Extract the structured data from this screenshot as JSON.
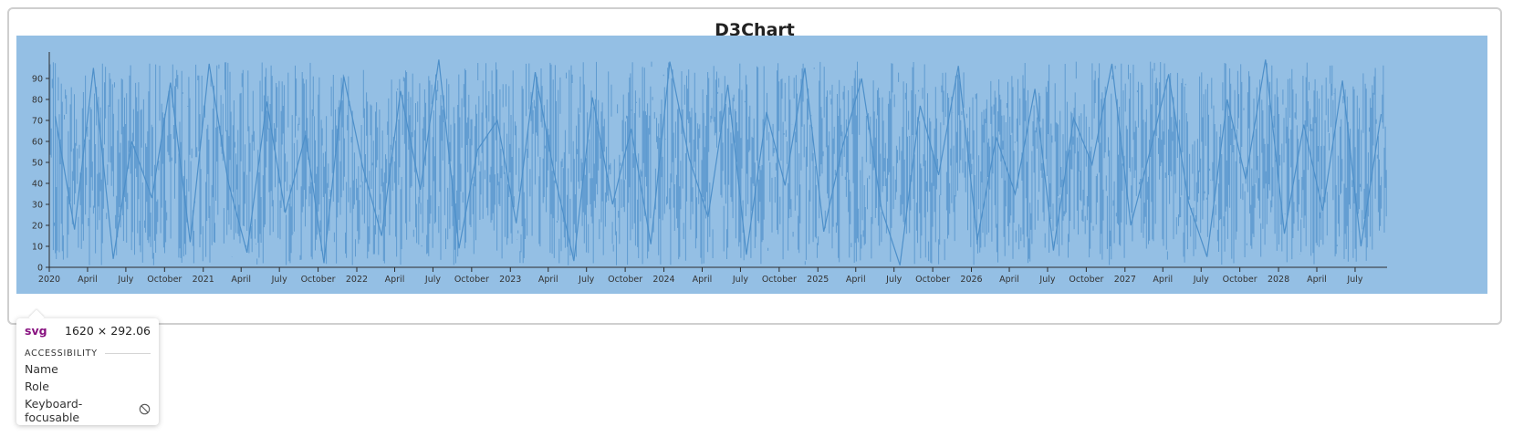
{
  "chart_data": {
    "type": "line",
    "title": "D3Chart",
    "xlabel": "",
    "ylabel": "",
    "ylim": [
      0,
      100
    ],
    "y_ticks": [
      0,
      10,
      20,
      30,
      40,
      50,
      60,
      70,
      80,
      90
    ],
    "x_range": [
      "2020-01-01",
      "2028-09-15"
    ],
    "x_ticks": [
      {
        "date": "2020-01-01",
        "label": "2020"
      },
      {
        "date": "2020-04-01",
        "label": "April"
      },
      {
        "date": "2020-07-01",
        "label": "July"
      },
      {
        "date": "2020-10-01",
        "label": "October"
      },
      {
        "date": "2021-01-01",
        "label": "2021"
      },
      {
        "date": "2021-04-01",
        "label": "April"
      },
      {
        "date": "2021-07-01",
        "label": "July"
      },
      {
        "date": "2021-10-01",
        "label": "October"
      },
      {
        "date": "2022-01-01",
        "label": "2022"
      },
      {
        "date": "2022-04-01",
        "label": "April"
      },
      {
        "date": "2022-07-01",
        "label": "July"
      },
      {
        "date": "2022-10-01",
        "label": "October"
      },
      {
        "date": "2023-01-01",
        "label": "2023"
      },
      {
        "date": "2023-04-01",
        "label": "April"
      },
      {
        "date": "2023-07-01",
        "label": "July"
      },
      {
        "date": "2023-10-01",
        "label": "October"
      },
      {
        "date": "2024-01-01",
        "label": "2024"
      },
      {
        "date": "2024-04-01",
        "label": "April"
      },
      {
        "date": "2024-07-01",
        "label": "July"
      },
      {
        "date": "2024-10-01",
        "label": "October"
      },
      {
        "date": "2025-01-01",
        "label": "2025"
      },
      {
        "date": "2025-04-01",
        "label": "April"
      },
      {
        "date": "2025-07-01",
        "label": "July"
      },
      {
        "date": "2025-10-01",
        "label": "October"
      },
      {
        "date": "2026-01-01",
        "label": "2026"
      },
      {
        "date": "2026-04-01",
        "label": "April"
      },
      {
        "date": "2026-07-01",
        "label": "July"
      },
      {
        "date": "2026-10-01",
        "label": "October"
      },
      {
        "date": "2027-01-01",
        "label": "2027"
      },
      {
        "date": "2027-04-01",
        "label": "April"
      },
      {
        "date": "2027-07-01",
        "label": "July"
      },
      {
        "date": "2027-10-01",
        "label": "October"
      },
      {
        "date": "2028-01-01",
        "label": "2028"
      },
      {
        "date": "2028-04-01",
        "label": "April"
      },
      {
        "date": "2028-07-01",
        "label": "July"
      }
    ],
    "series": [
      {
        "x": [
          "2020-01-15",
          "2020-03-01",
          "2020-04-15",
          "2020-06-01",
          "2020-07-15",
          "2020-09-01",
          "2020-10-15",
          "2020-12-01",
          "2021-01-15",
          "2021-03-01",
          "2021-04-15",
          "2021-06-01",
          "2021-07-15",
          "2021-09-01",
          "2021-10-15",
          "2021-12-01",
          "2022-01-15",
          "2022-03-01",
          "2022-04-15",
          "2022-06-01",
          "2022-07-15",
          "2022-09-01",
          "2022-10-15",
          "2022-12-01",
          "2023-01-15",
          "2023-03-01",
          "2023-04-15",
          "2023-06-01",
          "2023-07-15",
          "2023-09-01",
          "2023-10-15",
          "2023-12-01",
          "2024-01-15",
          "2024-03-01",
          "2024-04-15",
          "2024-06-01",
          "2024-07-15",
          "2024-09-01",
          "2024-10-15",
          "2024-12-01",
          "2025-01-15",
          "2025-03-01",
          "2025-04-15",
          "2025-06-01",
          "2025-07-15",
          "2025-09-01",
          "2025-10-15",
          "2025-12-01",
          "2026-01-15",
          "2026-03-01",
          "2026-04-15",
          "2026-06-01",
          "2026-07-15",
          "2026-09-01",
          "2026-10-15",
          "2026-12-01",
          "2027-01-15",
          "2027-03-01",
          "2027-04-15",
          "2027-06-01",
          "2027-07-15",
          "2027-09-01",
          "2027-10-15",
          "2027-12-01",
          "2028-01-15",
          "2028-03-01",
          "2028-04-15",
          "2028-06-01",
          "2028-07-15",
          "2028-09-01"
        ],
        "values": [
          72,
          18,
          95,
          4,
          60,
          33,
          88,
          12,
          97,
          41,
          7,
          79,
          26,
          63,
          2,
          91,
          48,
          15,
          84,
          37,
          99,
          9,
          56,
          70,
          21,
          93,
          45,
          3,
          81,
          30,
          66,
          11,
          98,
          52,
          24,
          87,
          6,
          74,
          39,
          95,
          17,
          58,
          90,
          28,
          1,
          77,
          44,
          96,
          13,
          62,
          35,
          85,
          8,
          71,
          49,
          97,
          20,
          55,
          92,
          31,
          5,
          80,
          42,
          99,
          16,
          68,
          27,
          89,
          10,
          73
        ],
        "color": "#4d8fc9"
      }
    ],
    "colors": {
      "plot_background": "#94bfe4",
      "series_line": "#4d8fc9",
      "axis": "#2b2b2b"
    },
    "grid": false,
    "legend": "none"
  },
  "inspector": {
    "tag": "svg",
    "size": "1620 × 292.06",
    "section": "ACCESSIBILITY",
    "properties": [
      "Name",
      "Role",
      "Keyboard-focusable"
    ],
    "keyboard_focusable_icon": "not-allowed-icon"
  }
}
